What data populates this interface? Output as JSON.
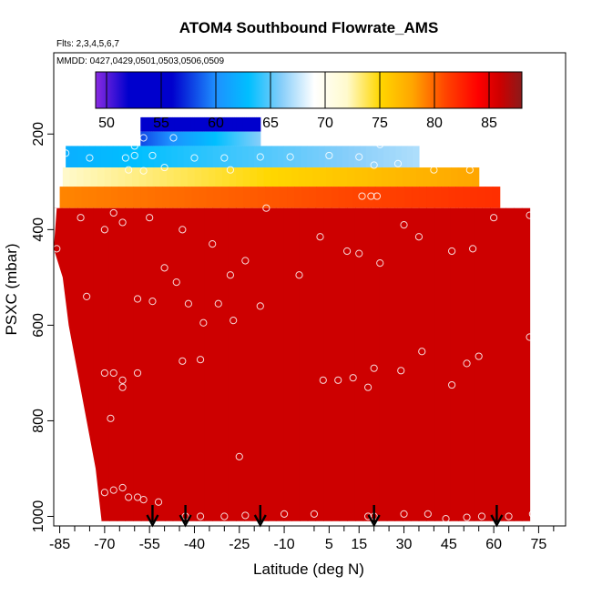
{
  "chart_data": {
    "type": "heatmap",
    "title": "ATOM4 Southbound Flowrate_AMS",
    "flights_note": "Flts: 2,3,4,5,6,7",
    "dates_note": "MMDD: 0427,0429,0501,0503,0506,0509",
    "xlabel": "Latitude (deg N)",
    "ylabel": "PSXC (mbar)",
    "xlim": [
      -87,
      84
    ],
    "ylim": [
      1020,
      30
    ],
    "y_reversed": true,
    "x_ticks": [
      -85,
      -70,
      -55,
      -40,
      -25,
      -10,
      5,
      15,
      30,
      45,
      60,
      75
    ],
    "x_tick_labels": [
      "-85",
      "-70",
      "-55",
      "-40",
      "-25",
      "-10",
      "5",
      "15",
      "30",
      "45",
      "60",
      "75"
    ],
    "x_minor_ticks": [
      -80,
      -75,
      -65,
      -60,
      -50,
      -45,
      -35,
      -30,
      -20,
      -15,
      0,
      10,
      20,
      25,
      35,
      40,
      50,
      55,
      65,
      70,
      80
    ],
    "y_ticks": [
      200,
      400,
      600,
      800,
      1000
    ],
    "y_tick_labels": [
      "200",
      "400",
      "600",
      "800",
      "1000"
    ],
    "colorbar": {
      "min": 49,
      "max": 88,
      "ticks": [
        50,
        55,
        60,
        65,
        70,
        75,
        80,
        85
      ],
      "tick_labels": [
        "50",
        "55",
        "60",
        "65",
        "70",
        "75",
        "80",
        "85"
      ],
      "stops": [
        {
          "v": 49,
          "c": "#8a2be2"
        },
        {
          "v": 52,
          "c": "#0000cd"
        },
        {
          "v": 56,
          "c": "#0000cd"
        },
        {
          "v": 60,
          "c": "#1e90ff"
        },
        {
          "v": 63,
          "c": "#00bfff"
        },
        {
          "v": 66,
          "c": "#87cefa"
        },
        {
          "v": 69,
          "c": "#ffffff"
        },
        {
          "v": 72,
          "c": "#fffacd"
        },
        {
          "v": 75,
          "c": "#ffd700"
        },
        {
          "v": 78,
          "c": "#ffa500"
        },
        {
          "v": 81,
          "c": "#ff4500"
        },
        {
          "v": 84,
          "c": "#ff0000"
        },
        {
          "v": 86,
          "c": "#cd0000"
        },
        {
          "v": 88,
          "c": "#8b1a1a"
        }
      ]
    },
    "curtain_bands": [
      {
        "p_top": 165,
        "p_bot": 195,
        "lat_start": -58,
        "lat_end": -18,
        "v_start": 52,
        "v_end": 56
      },
      {
        "p_top": 195,
        "p_bot": 225,
        "lat_start": -58,
        "lat_end": -18,
        "v_start": 58,
        "v_end": 66
      },
      {
        "p_top": 225,
        "p_bot": 270,
        "lat_start": -83,
        "lat_end": 35,
        "v_start": 62,
        "v_end": 67
      },
      {
        "p_top": 270,
        "p_bot": 310,
        "lat_start": -84,
        "lat_end": 55,
        "v_start": 72,
        "v_end": 78
      },
      {
        "p_top": 310,
        "p_bot": 355,
        "lat_start": -85,
        "lat_end": 62,
        "v_start": 79,
        "v_end": 82
      },
      {
        "p_top": 355,
        "p_bot": 1010,
        "lat_start": -87,
        "lat_end": 72,
        "v_start": 86,
        "v_end": 86
      }
    ],
    "curtain_left_edge": [
      {
        "p": 355,
        "lat": -86
      },
      {
        "p": 440,
        "lat": -87
      },
      {
        "p": 500,
        "lat": -84
      },
      {
        "p": 600,
        "lat": -82
      },
      {
        "p": 700,
        "lat": -79
      },
      {
        "p": 800,
        "lat": -76
      },
      {
        "p": 900,
        "lat": -73
      },
      {
        "p": 1010,
        "lat": -71
      }
    ],
    "sample_points": [
      {
        "lat": -57,
        "p": 208
      },
      {
        "lat": -47,
        "p": 208
      },
      {
        "lat": -8,
        "p": 208
      },
      {
        "lat": -60,
        "p": 225
      },
      {
        "lat": -83,
        "p": 240
      },
      {
        "lat": -60,
        "p": 245
      },
      {
        "lat": -54,
        "p": 245
      },
      {
        "lat": -40,
        "p": 250
      },
      {
        "lat": -30,
        "p": 250
      },
      {
        "lat": -18,
        "p": 248
      },
      {
        "lat": -8,
        "p": 248
      },
      {
        "lat": 5,
        "p": 245
      },
      {
        "lat": 15,
        "p": 248
      },
      {
        "lat": 22,
        "p": 222
      },
      {
        "lat": -75,
        "p": 250
      },
      {
        "lat": -63,
        "p": 250
      },
      {
        "lat": -62,
        "p": 275
      },
      {
        "lat": -57,
        "p": 277
      },
      {
        "lat": -50,
        "p": 270
      },
      {
        "lat": -28,
        "p": 275
      },
      {
        "lat": 20,
        "p": 265
      },
      {
        "lat": 28,
        "p": 262
      },
      {
        "lat": 40,
        "p": 275
      },
      {
        "lat": 52,
        "p": 275
      },
      {
        "lat": -78,
        "p": 375
      },
      {
        "lat": -67,
        "p": 365
      },
      {
        "lat": -55,
        "p": 375
      },
      {
        "lat": -16,
        "p": 355
      },
      {
        "lat": 19,
        "p": 330
      },
      {
        "lat": 21,
        "p": 330
      },
      {
        "lat": 16,
        "p": 330
      },
      {
        "lat": 30,
        "p": 390
      },
      {
        "lat": -70,
        "p": 400
      },
      {
        "lat": -64,
        "p": 385
      },
      {
        "lat": -44,
        "p": 400
      },
      {
        "lat": -34,
        "p": 430
      },
      {
        "lat": 2,
        "p": 415
      },
      {
        "lat": 11,
        "p": 445
      },
      {
        "lat": 15,
        "p": 450
      },
      {
        "lat": 22,
        "p": 470
      },
      {
        "lat": 35,
        "p": 415
      },
      {
        "lat": 46,
        "p": 445
      },
      {
        "lat": 53,
        "p": 440
      },
      {
        "lat": 60,
        "p": 375
      },
      {
        "lat": 72,
        "p": 370
      },
      {
        "lat": -86,
        "p": 440
      },
      {
        "lat": -76,
        "p": 540
      },
      {
        "lat": -50,
        "p": 480
      },
      {
        "lat": -46,
        "p": 510
      },
      {
        "lat": -23,
        "p": 465
      },
      {
        "lat": -28,
        "p": 495
      },
      {
        "lat": -5,
        "p": 495
      },
      {
        "lat": -59,
        "p": 545
      },
      {
        "lat": -54,
        "p": 550
      },
      {
        "lat": -42,
        "p": 555
      },
      {
        "lat": -32,
        "p": 555
      },
      {
        "lat": -18,
        "p": 560
      },
      {
        "lat": -27,
        "p": 590
      },
      {
        "lat": -37,
        "p": 595
      },
      {
        "lat": 72,
        "p": 625
      },
      {
        "lat": -70,
        "p": 700
      },
      {
        "lat": -67,
        "p": 700
      },
      {
        "lat": -64,
        "p": 715
      },
      {
        "lat": -64,
        "p": 730
      },
      {
        "lat": -59,
        "p": 700
      },
      {
        "lat": -44,
        "p": 675
      },
      {
        "lat": -38,
        "p": 672
      },
      {
        "lat": 3,
        "p": 715
      },
      {
        "lat": 8,
        "p": 715
      },
      {
        "lat": 13,
        "p": 710
      },
      {
        "lat": 18,
        "p": 730
      },
      {
        "lat": 20,
        "p": 690
      },
      {
        "lat": 29,
        "p": 695
      },
      {
        "lat": 36,
        "p": 655
      },
      {
        "lat": 46,
        "p": 725
      },
      {
        "lat": 51,
        "p": 680
      },
      {
        "lat": 55,
        "p": 665
      },
      {
        "lat": -68,
        "p": 795
      },
      {
        "lat": -25,
        "p": 875
      },
      {
        "lat": -70,
        "p": 950
      },
      {
        "lat": -67,
        "p": 945
      },
      {
        "lat": -64,
        "p": 940
      },
      {
        "lat": -62,
        "p": 960
      },
      {
        "lat": -59,
        "p": 960
      },
      {
        "lat": -57,
        "p": 965
      },
      {
        "lat": -52,
        "p": 970
      },
      {
        "lat": -43,
        "p": 1000
      },
      {
        "lat": -38,
        "p": 1000
      },
      {
        "lat": -30,
        "p": 1000
      },
      {
        "lat": -23,
        "p": 998
      },
      {
        "lat": -10,
        "p": 995
      },
      {
        "lat": 0,
        "p": 995
      },
      {
        "lat": 18,
        "p": 1000
      },
      {
        "lat": 20,
        "p": 1000
      },
      {
        "lat": 30,
        "p": 995
      },
      {
        "lat": 38,
        "p": 995
      },
      {
        "lat": 44,
        "p": 1005
      },
      {
        "lat": 51,
        "p": 1002
      },
      {
        "lat": 56,
        "p": 1000
      },
      {
        "lat": 65,
        "p": 1000
      },
      {
        "lat": 73,
        "p": 995
      }
    ],
    "arrow_latitudes": [
      -54,
      -43,
      -18,
      20,
      61
    ]
  }
}
